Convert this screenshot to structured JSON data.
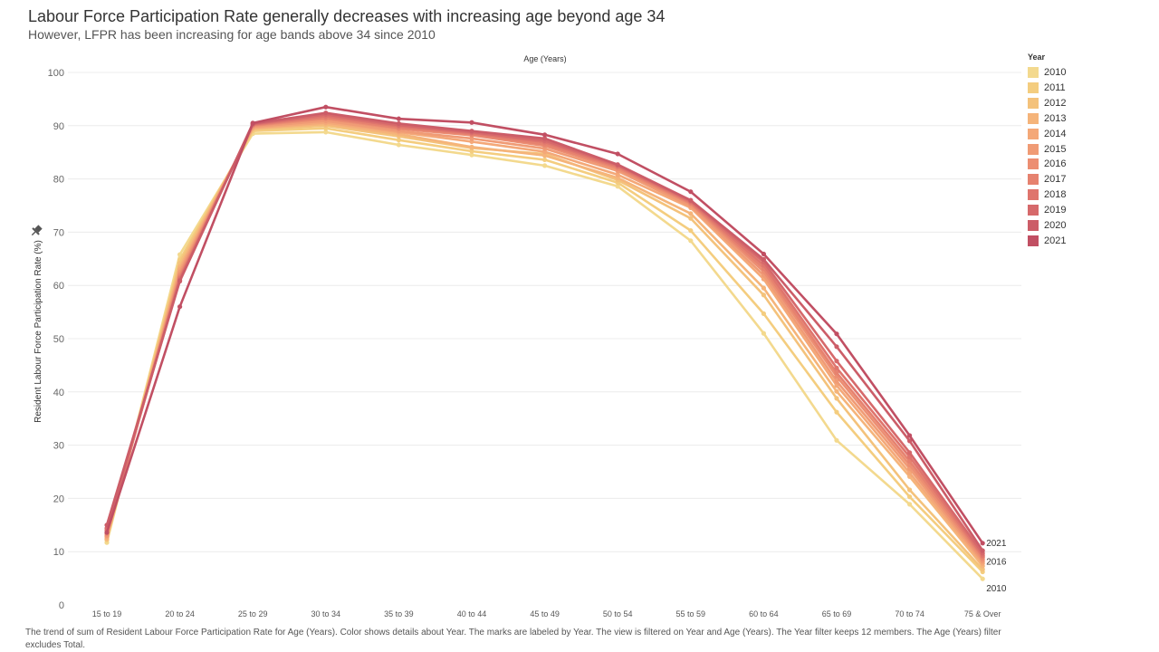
{
  "header": {
    "title": "Labour Force Participation Rate generally decreases with increasing age beyond age 34",
    "subtitle": "However, LFPR has been increasing for age bands above 34 since 2010"
  },
  "legend": {
    "title": "Year"
  },
  "caption": "The trend of sum of Resident  Labour  Force  Participation  Rate for Age (Years).  Color shows details about Year.  The marks are labeled by Year.  The view is filtered on Year and Age (Years). The Year filter keeps 12 members. The Age (Years) filter excludes Total.",
  "chart_data": {
    "type": "line",
    "title": "",
    "column_header": "Age (Years)",
    "xlabel": "",
    "ylabel": "Resident Labour Force Participation Rate (%)",
    "ylim": [
      0,
      100
    ],
    "yticks": [
      0,
      10,
      20,
      30,
      40,
      50,
      60,
      70,
      80,
      90,
      100
    ],
    "grid": true,
    "legend_position": "right",
    "categories": [
      "15 to 19",
      "20 to 24",
      "25 to 29",
      "30 to 34",
      "35 to 39",
      "40 to 44",
      "45 to 49",
      "50 to 54",
      "55 to 59",
      "60 to 64",
      "65 to 69",
      "70 to 74",
      "75 & Over"
    ],
    "series": [
      {
        "name": "2010",
        "color": "#f3d98e",
        "values": [
          11.7,
          65.8,
          88.5,
          88.8,
          86.4,
          84.5,
          82.5,
          78.6,
          68.4,
          51.0,
          30.9,
          18.9,
          4.9
        ]
      },
      {
        "name": "2011",
        "color": "#f4cd7f",
        "values": [
          12.2,
          64.8,
          89.0,
          89.5,
          87.3,
          85.2,
          83.6,
          79.3,
          70.3,
          54.7,
          36.2,
          20.3,
          6.2
        ]
      },
      {
        "name": "2012",
        "color": "#f4c27b",
        "values": [
          12.3,
          64.2,
          89.3,
          90.0,
          88.0,
          85.8,
          84.7,
          79.8,
          72.6,
          58.2,
          38.8,
          21.6,
          6.7
        ]
      },
      {
        "name": "2013",
        "color": "#f5b47a",
        "values": [
          12.5,
          63.5,
          89.5,
          90.3,
          88.4,
          86.0,
          84.4,
          80.2,
          73.5,
          59.5,
          40.1,
          24.1,
          7.3
        ]
      },
      {
        "name": "2014",
        "color": "#f4a878",
        "values": [
          12.8,
          63.0,
          89.6,
          90.6,
          88.8,
          87.0,
          85.1,
          80.8,
          74.6,
          61.2,
          41.2,
          24.8,
          7.8
        ]
      },
      {
        "name": "2015",
        "color": "#f09b75",
        "values": [
          13.0,
          62.5,
          89.8,
          90.9,
          89.0,
          87.6,
          85.7,
          81.5,
          74.9,
          61.9,
          42.0,
          25.6,
          8.2
        ]
      },
      {
        "name": "2016",
        "color": "#ec8e72",
        "values": [
          13.3,
          62.0,
          90.0,
          91.3,
          89.4,
          88.2,
          86.2,
          81.9,
          75.3,
          62.6,
          42.9,
          26.3,
          8.6
        ]
      },
      {
        "name": "2017",
        "color": "#e6826f",
        "values": [
          13.6,
          61.6,
          90.1,
          91.5,
          89.6,
          88.4,
          86.5,
          82.2,
          75.5,
          63.2,
          43.6,
          27.0,
          9.0
        ]
      },
      {
        "name": "2018",
        "color": "#df756d",
        "values": [
          14.0,
          61.3,
          90.2,
          91.8,
          89.9,
          88.6,
          86.9,
          82.4,
          75.7,
          63.8,
          44.5,
          27.8,
          9.3
        ]
      },
      {
        "name": "2019",
        "color": "#d6696b",
        "values": [
          14.4,
          61.0,
          90.3,
          92.1,
          90.1,
          88.8,
          87.2,
          82.6,
          75.9,
          64.4,
          45.8,
          28.6,
          9.7
        ]
      },
      {
        "name": "2020",
        "color": "#cc5d68",
        "values": [
          15.0,
          60.8,
          90.4,
          92.4,
          90.4,
          89.0,
          87.6,
          82.7,
          76.0,
          64.9,
          48.5,
          30.8,
          10.2
        ]
      },
      {
        "name": "2021",
        "color": "#c14f63",
        "values": [
          13.6,
          56.0,
          90.5,
          93.5,
          91.3,
          90.6,
          88.3,
          84.7,
          77.6,
          65.9,
          50.9,
          31.8,
          11.6
        ]
      }
    ],
    "end_labels": [
      "2010",
      "2016",
      "2021"
    ]
  }
}
